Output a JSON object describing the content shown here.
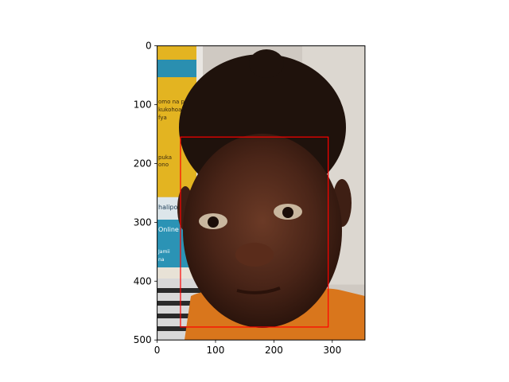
{
  "chart_data": {
    "type": "image",
    "title": "",
    "xlabel": "",
    "ylabel": "",
    "image": {
      "description": "Photograph of a person's face (dark hair, orange shirt) in front of a wall with yellow and blue posters",
      "width": 356,
      "height": 500
    },
    "xlim": [
      0,
      356
    ],
    "ylim": [
      500,
      0
    ],
    "xticks": [
      0,
      100,
      200,
      300
    ],
    "yticks": [
      0,
      100,
      200,
      300,
      400,
      500
    ],
    "bounding_box": {
      "label": "face",
      "color": "#ff0000",
      "x0": 40,
      "y0": 155,
      "x1": 293,
      "y1": 478
    },
    "background_text_fragments": [
      "omo na pua",
      "kukohoa na",
      "fya",
      "puka",
      "ono",
      "halipo",
      "Online",
      "Jamii",
      "na"
    ]
  },
  "colors": {
    "frame": "#000000",
    "bbox": "#ff0000",
    "background": "#ffffff"
  }
}
